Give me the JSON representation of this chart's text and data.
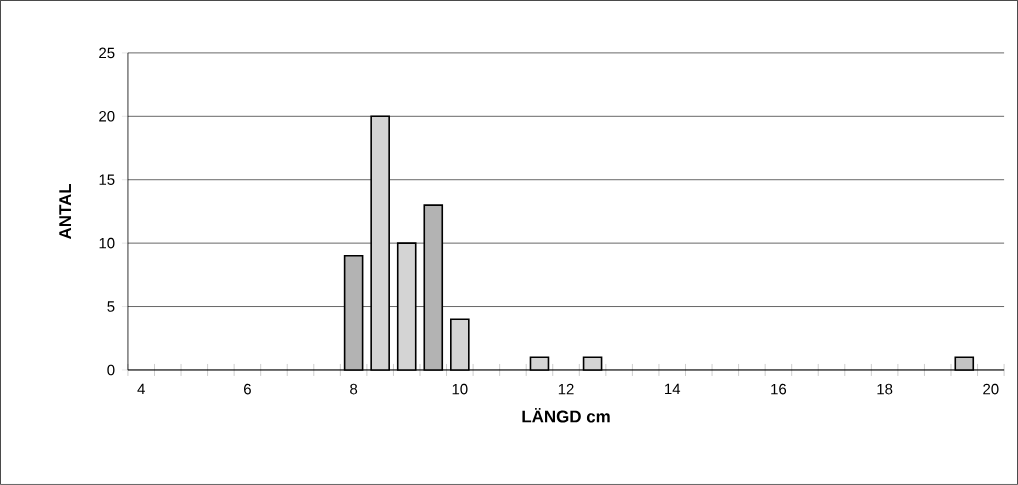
{
  "chart_data": {
    "type": "bar",
    "xlabel": "LÄNGD cm",
    "ylabel": "ANTAL",
    "categories": [
      "4",
      null,
      null,
      null,
      "6",
      null,
      null,
      null,
      "8",
      null,
      null,
      null,
      "10",
      null,
      null,
      null,
      "12",
      null,
      null,
      null,
      "14",
      null,
      null,
      null,
      "16",
      null,
      null,
      null,
      "18",
      null,
      null,
      null,
      "20"
    ],
    "values": [
      0,
      0,
      0,
      0,
      0,
      0,
      0,
      0,
      9,
      20,
      10,
      13,
      4,
      0,
      0,
      1,
      0,
      1,
      0,
      0,
      0,
      0,
      0,
      0,
      0,
      0,
      0,
      0,
      0,
      0,
      0,
      1,
      0
    ],
    "colors": [
      "#cccccc",
      "#cccccc",
      "#cccccc",
      "#cccccc",
      "#cccccc",
      "#cccccc",
      "#cccccc",
      "#cccccc",
      "#b3b3b3",
      "#d4d4d4",
      "#d4d4d4",
      "#b3b3b3",
      "#d4d4d4",
      "#cccccc",
      "#cccccc",
      "#d4d4d4",
      "#cccccc",
      "#d4d4d4",
      "#cccccc",
      "#cccccc",
      "#cccccc",
      "#cccccc",
      "#cccccc",
      "#cccccc",
      "#cccccc",
      "#cccccc",
      "#cccccc",
      "#cccccc",
      "#cccccc",
      "#cccccc",
      "#cccccc",
      "#c4c4c4",
      "#cccccc"
    ],
    "ylim": [
      0,
      25
    ],
    "yticks": [
      0,
      5,
      10,
      15,
      20,
      25
    ],
    "grid": "y"
  }
}
